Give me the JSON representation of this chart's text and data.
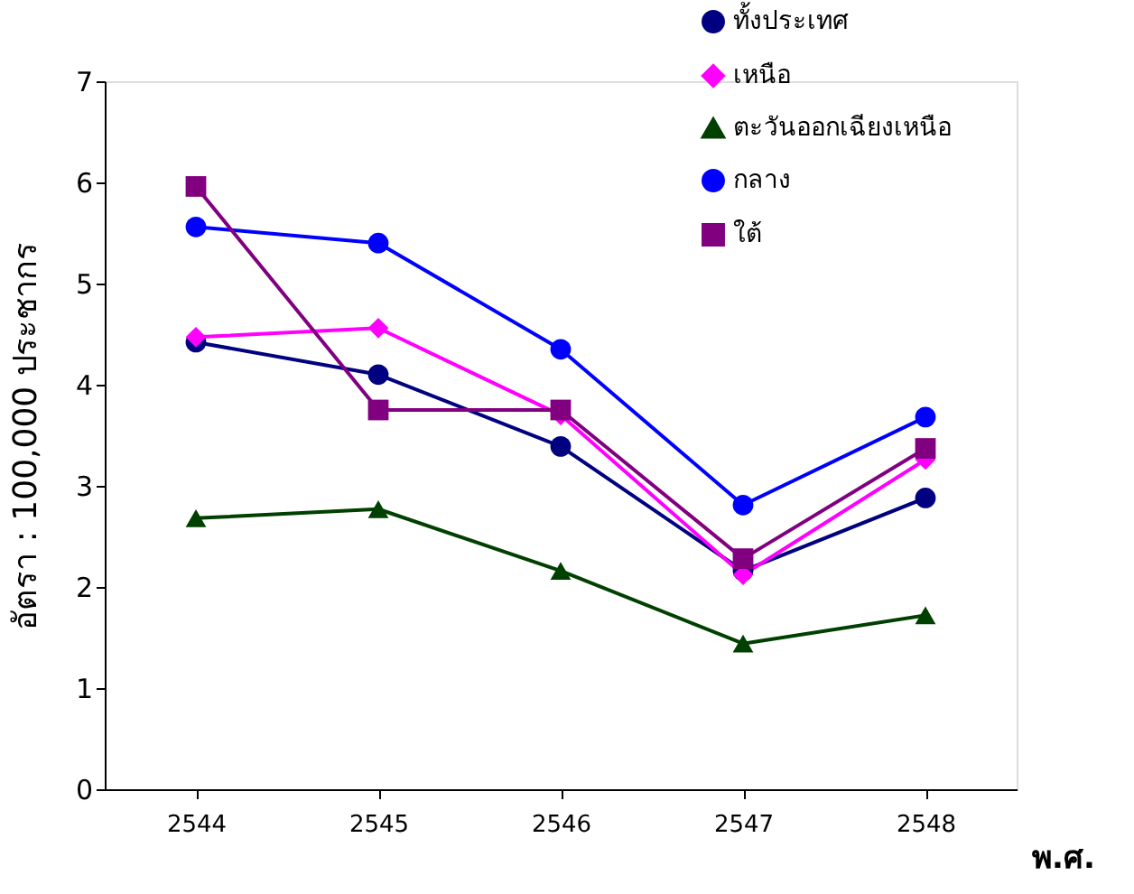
{
  "chart_data": {
    "type": "line",
    "xlabel": "พ.ศ.",
    "ylabel": "อัตรา : 100,000 ประชากร",
    "categories": [
      "2544",
      "2545",
      "2546",
      "2547",
      "2548"
    ],
    "ylim": [
      0,
      7
    ],
    "yticks": [
      0,
      1,
      2,
      3,
      4,
      5,
      6,
      7
    ],
    "grid": false,
    "legend": "top right",
    "line_style": "solid",
    "series": [
      {
        "name": "ทั้งประเทศ",
        "color": "#000080",
        "marker": "circle",
        "values": [
          4.42,
          4.1,
          3.39,
          2.16,
          2.88
        ]
      },
      {
        "name": "เหนือ",
        "color": "#ff00ff",
        "marker": "diamond",
        "values": [
          4.47,
          4.56,
          3.7,
          2.12,
          3.26
        ]
      },
      {
        "name": "ตะวันออกเฉียงเหนือ",
        "color": "#004000",
        "marker": "triangle",
        "values": [
          2.68,
          2.77,
          2.16,
          1.44,
          1.72
        ]
      },
      {
        "name": "กลาง",
        "color": "#0000ff",
        "marker": "circle",
        "values": [
          5.56,
          5.4,
          4.35,
          2.81,
          3.68
        ]
      },
      {
        "name": "ใต้",
        "color": "#800080",
        "marker": "square",
        "values": [
          5.96,
          3.75,
          3.75,
          2.28,
          3.37
        ]
      }
    ]
  }
}
